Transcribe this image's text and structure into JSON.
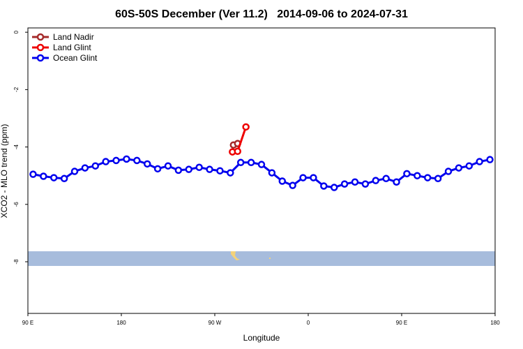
{
  "chart_data": {
    "type": "line",
    "title": "60S-50S December (Ver 11.2)   2014-09-06 to 2024-07-31",
    "x_label": "Longitude",
    "y_label": "XCO2 - MLO trend (ppm)",
    "xlim": [
      90,
      540
    ],
    "ylim": [
      -9.8,
      0.15
    ],
    "xticks": [
      {
        "value": 90,
        "label": "90 E"
      },
      {
        "value": 180,
        "label": "180"
      },
      {
        "value": 270,
        "label": "90 W"
      },
      {
        "value": 360,
        "label": "0"
      },
      {
        "value": 450,
        "label": "90 E"
      },
      {
        "value": 540,
        "label": "180"
      }
    ],
    "yticks": [
      0,
      -2,
      -4,
      -6,
      -8
    ],
    "legend": "top-left",
    "series": [
      {
        "name": "Land Nadir",
        "color": "#a52a2a",
        "x": [
          288,
          292
        ],
        "values": [
          -3.93,
          -3.88
        ]
      },
      {
        "name": "Land Glint",
        "color": "#ee0000",
        "x": [
          287,
          292,
          300
        ],
        "values": [
          -4.17,
          -4.15,
          -3.3
        ]
      },
      {
        "name": "Ocean Glint",
        "color": "#0000ee",
        "x": [
          95,
          105,
          115,
          125,
          135,
          145,
          155,
          165,
          175,
          185,
          195,
          205,
          215,
          225,
          235,
          245,
          255,
          265,
          275,
          285,
          295,
          305,
          315,
          325,
          335,
          345,
          355,
          365,
          375,
          385,
          395,
          405,
          415,
          425,
          435,
          445,
          455,
          465,
          475,
          485,
          495,
          505,
          515,
          525,
          535
        ],
        "values": [
          -4.95,
          -5.02,
          -5.07,
          -5.1,
          -4.85,
          -4.73,
          -4.66,
          -4.51,
          -4.47,
          -4.42,
          -4.47,
          -4.59,
          -4.76,
          -4.66,
          -4.81,
          -4.78,
          -4.71,
          -4.78,
          -4.83,
          -4.9,
          -4.54,
          -4.54,
          -4.61,
          -4.9,
          -5.19,
          -5.34,
          -5.07,
          -5.07,
          -5.36,
          -5.41,
          -5.29,
          -5.22,
          -5.29,
          -5.17,
          -5.1,
          -5.22,
          -4.93,
          -5.0,
          -5.07,
          -5.1,
          -4.85,
          -4.73,
          -4.66,
          -4.51,
          -4.44
        ]
      }
    ]
  }
}
